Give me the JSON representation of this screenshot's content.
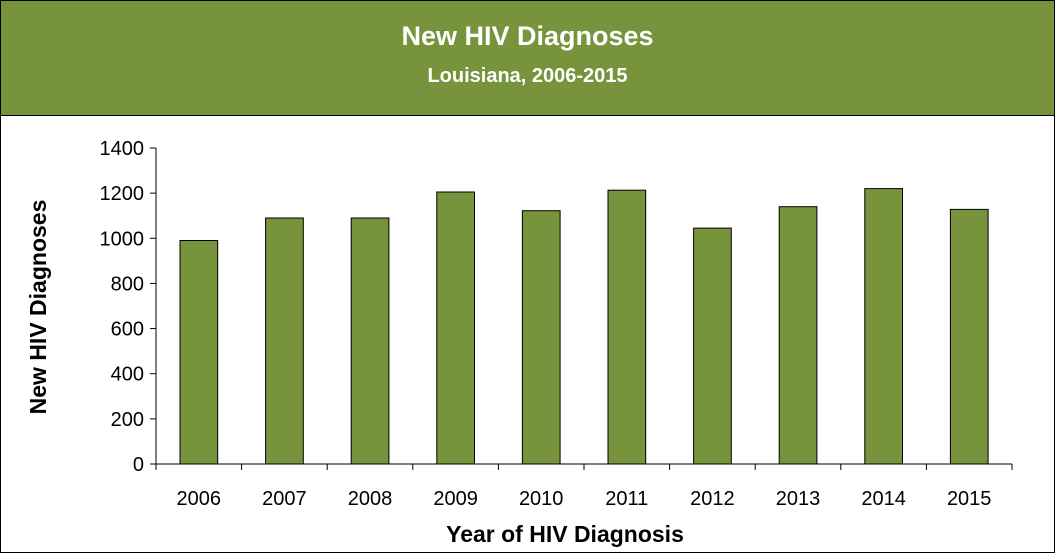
{
  "colors": {
    "header_bg": "#77933c",
    "bar_fill": "#77933c",
    "bar_stroke": "#000000"
  },
  "chart_data": {
    "type": "bar",
    "title": "New HIV Diagnoses",
    "subtitle": "Louisiana, 2006-2015",
    "xlabel": "Year of HIV Diagnosis",
    "ylabel": "New HIV Diagnoses",
    "categories": [
      "2006",
      "2007",
      "2008",
      "2009",
      "2010",
      "2011",
      "2012",
      "2013",
      "2014",
      "2015"
    ],
    "values": [
      990,
      1090,
      1090,
      1205,
      1122,
      1213,
      1045,
      1140,
      1220,
      1128
    ],
    "ylim": [
      0,
      1400
    ],
    "yticks": [
      "0",
      "200",
      "400",
      "600",
      "800",
      "1000",
      "1200",
      "1400"
    ],
    "grid": false,
    "legend": "none"
  }
}
